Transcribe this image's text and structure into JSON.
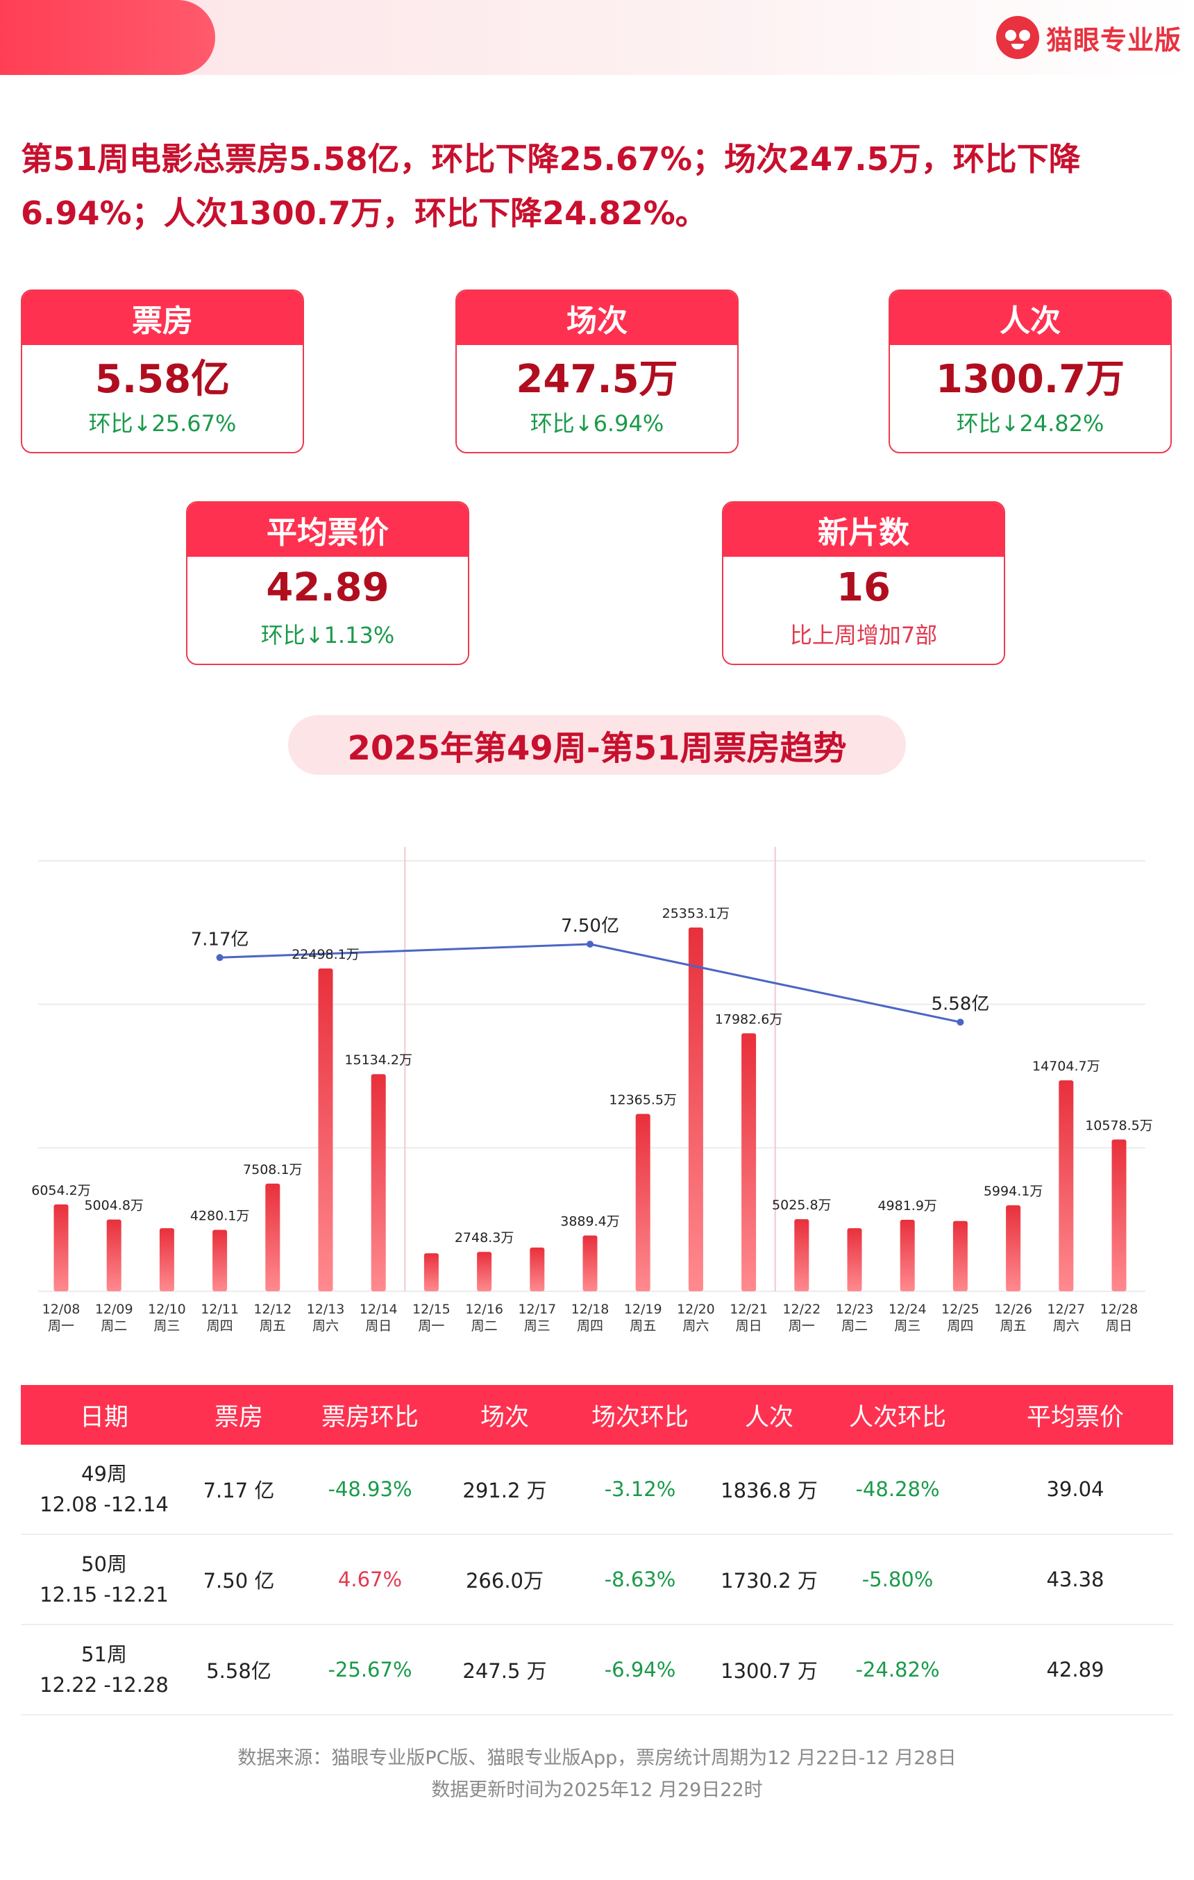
{
  "brand": {
    "name": "猫眼专业版"
  },
  "headline": {
    "line1": "第51周电影总票房5.58亿，环比下降25.67%；场次247.5万，环比下降",
    "line2": "6.94%；人次1300.7万，环比下降24.82%。"
  },
  "cards": {
    "boxoffice": {
      "title": "票房",
      "value": "5.58亿",
      "sub": "环比↓25.67%"
    },
    "shows": {
      "title": "场次",
      "value": "247.5万",
      "sub": "环比↓6.94%"
    },
    "admissions": {
      "title": "人次",
      "value": "1300.7万",
      "sub": "环比↓24.82%"
    },
    "avg_price": {
      "title": "平均票价",
      "value": "42.89",
      "sub": "环比↓1.13%"
    },
    "new_films": {
      "title": "新片数",
      "value": "16",
      "sub": "比上周增加7部"
    }
  },
  "trend_title": "2025年第49周-第51周票房趋势",
  "chart_data": {
    "type": "bar",
    "title": "2025年第49周-第51周票房趋势",
    "unit": "万",
    "categories": [
      "12/08",
      "12/09",
      "12/10",
      "12/11",
      "12/12",
      "12/13",
      "12/14",
      "12/15",
      "12/16",
      "12/17",
      "12/18",
      "12/19",
      "12/20",
      "12/21",
      "12/22",
      "12/23",
      "12/24",
      "12/25",
      "12/26",
      "12/27",
      "12/28"
    ],
    "weekdays": [
      "周一",
      "周二",
      "周三",
      "周四",
      "周五",
      "周六",
      "周日",
      "周一",
      "周二",
      "周三",
      "周四",
      "周五",
      "周六",
      "周日",
      "周一",
      "周二",
      "周三",
      "周四",
      "周五",
      "周六",
      "周日"
    ],
    "values": [
      6054.2,
      5004.8,
      4400,
      4280.1,
      7508.1,
      22498.1,
      15134.2,
      2650,
      2748.3,
      3050,
      3889.4,
      12365.5,
      25353.1,
      17982.6,
      5025.8,
      4400,
      4981.9,
      4900,
      5994.1,
      14704.7,
      10578.5
    ],
    "labels": [
      "6054.2万",
      "5004.8万",
      "",
      "4280.1万",
      "7508.1万",
      "22498.1万",
      "15134.2万",
      "",
      "2748.3万",
      "",
      "3889.4万",
      "12365.5万",
      "25353.1万",
      "17982.6万",
      "5025.8万",
      "",
      "4981.9万",
      "",
      "5994.1万",
      "14704.7万",
      "10578.5万"
    ],
    "bar_color": "#ef3e4a",
    "line_series": {
      "name": "周票房",
      "values": [
        7.17,
        7.5,
        5.58
      ],
      "labels": [
        "7.17亿",
        "7.50亿",
        "5.58亿"
      ],
      "color": "#4a66c4"
    },
    "ylim": [
      0,
      30000
    ],
    "grid": true
  },
  "table": {
    "headers": [
      "日期",
      "票房",
      "票房环比",
      "场次",
      "场次环比",
      "人次",
      "人次环比",
      "平均票价"
    ],
    "rows": [
      {
        "week": "49周",
        "range": "12.08 -12.14",
        "boxoffice": "7.17 亿",
        "bo_change": "-48.93%",
        "shows": "291.2 万",
        "shows_change": "-3.12%",
        "admissions": "1836.8 万",
        "adm_change": "-48.28%",
        "avg_price": "39.04"
      },
      {
        "week": "50周",
        "range": "12.15 -12.21",
        "boxoffice": "7.50 亿",
        "bo_change": "4.67%",
        "shows": "266.0万",
        "shows_change": "-8.63%",
        "admissions": "1730.2 万",
        "adm_change": "-5.80%",
        "avg_price": "43.38"
      },
      {
        "week": "51周",
        "range": "12.22 -12.28",
        "boxoffice": "5.58亿",
        "bo_change": "-25.67%",
        "shows": "247.5 万",
        "shows_change": "-6.94%",
        "admissions": "1300.7 万",
        "adm_change": "-24.82%",
        "avg_price": "42.89"
      }
    ]
  },
  "footer": {
    "line1": "数据来源：猫眼专业版PC版、猫眼专业版App，票房统计周期为12 月22日-12 月28日",
    "line2": "数据更新时间为2025年12 月29日22时"
  }
}
